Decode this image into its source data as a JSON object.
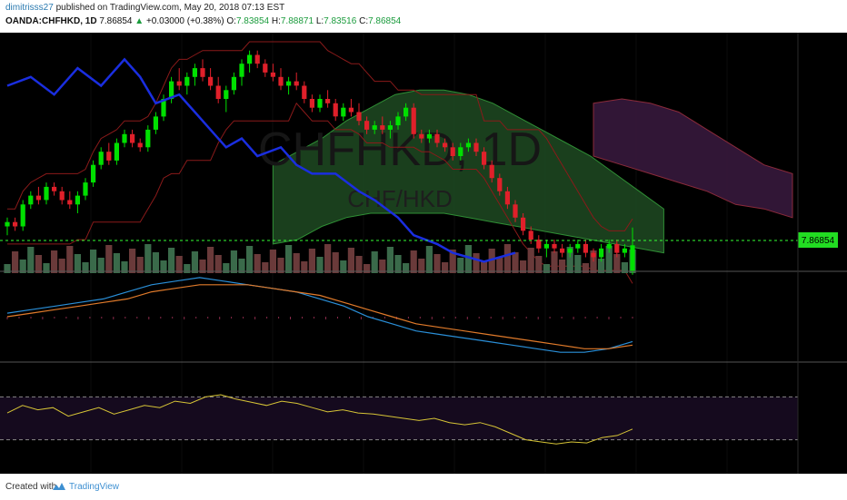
{
  "header": {
    "publisher": "dimitrisss27",
    "published_text": "published on TradingView.com, May 20, 2018 07:13 EST",
    "symbol": "OANDA:CHFHKD, 1D",
    "last": "7.86854",
    "change_arrow": "▲",
    "change": "+0.03000 (+0.38%)",
    "o_label": "O:",
    "o_value": "7.83854",
    "h_label": "H:",
    "h_value": "7.88871",
    "l_label": "L:",
    "l_value": "7.83516",
    "c_label": "C:",
    "c_value": "7.86854"
  },
  "watermark": {
    "symbol_tf": "CHFHKD, 1D",
    "pair": "CHF/HKD"
  },
  "price_label": "7.86854",
  "footer": {
    "created_with": "Created with",
    "brand": "TradingView",
    "logo_icon": "tradingview-logo-icon"
  },
  "colors": {
    "background": "#000000",
    "up_candle": "#00e000",
    "down_candle": "#e0202a",
    "blue_line": "#1a2ee0",
    "cloud_green": "#1f4a22",
    "cloud_purple": "#3a1a40",
    "rsi_band": "#150a1e",
    "rsi_line": "#d6c436",
    "macd_line": "#2a8fd8",
    "signal_line": "#e07a2a",
    "price_line": "#33ff33"
  },
  "chart_data": [
    {
      "type": "candlestick",
      "panel": "price",
      "symbol": "OANDA:CHFHKD",
      "timeframe": "1D",
      "last_price": 7.86854,
      "price_range": [
        7.84,
        8.1
      ],
      "candles": [
        [
          7.89,
          7.9,
          7.88,
          7.895
        ],
        [
          7.895,
          7.9,
          7.885,
          7.89
        ],
        [
          7.89,
          7.92,
          7.885,
          7.915
        ],
        [
          7.915,
          7.93,
          7.91,
          7.925
        ],
        [
          7.925,
          7.935,
          7.915,
          7.92
        ],
        [
          7.92,
          7.94,
          7.915,
          7.935
        ],
        [
          7.935,
          7.94,
          7.925,
          7.93
        ],
        [
          7.93,
          7.935,
          7.915,
          7.92
        ],
        [
          7.92,
          7.93,
          7.91,
          7.915
        ],
        [
          7.915,
          7.93,
          7.905,
          7.925
        ],
        [
          7.925,
          7.945,
          7.92,
          7.94
        ],
        [
          7.94,
          7.965,
          7.935,
          7.96
        ],
        [
          7.96,
          7.98,
          7.955,
          7.975
        ],
        [
          7.975,
          7.985,
          7.96,
          7.965
        ],
        [
          7.965,
          7.99,
          7.96,
          7.985
        ],
        [
          7.985,
          8.0,
          7.98,
          7.995
        ],
        [
          7.995,
          8.0,
          7.98,
          7.985
        ],
        [
          7.985,
          7.99,
          7.975,
          7.98
        ],
        [
          7.98,
          8.005,
          7.975,
          8.0
        ],
        [
          8.0,
          8.02,
          7.995,
          8.015
        ],
        [
          8.015,
          8.04,
          8.01,
          8.035
        ],
        [
          8.035,
          8.06,
          8.03,
          8.055
        ],
        [
          8.055,
          8.07,
          8.045,
          8.05
        ],
        [
          8.05,
          8.065,
          8.04,
          8.06
        ],
        [
          8.06,
          8.075,
          8.05,
          8.07
        ],
        [
          8.07,
          8.08,
          8.055,
          8.06
        ],
        [
          8.06,
          8.07,
          8.045,
          8.05
        ],
        [
          8.05,
          8.06,
          8.03,
          8.035
        ],
        [
          8.035,
          8.05,
          8.02,
          8.045
        ],
        [
          8.045,
          8.065,
          8.04,
          8.06
        ],
        [
          8.06,
          8.08,
          8.05,
          8.075
        ],
        [
          8.075,
          8.09,
          8.065,
          8.085
        ],
        [
          8.085,
          8.09,
          8.07,
          8.075
        ],
        [
          8.075,
          8.08,
          8.06,
          8.065
        ],
        [
          8.065,
          8.075,
          8.055,
          8.06
        ],
        [
          8.06,
          8.07,
          8.045,
          8.05
        ],
        [
          8.05,
          8.06,
          8.04,
          8.055
        ],
        [
          8.055,
          8.065,
          8.045,
          8.05
        ],
        [
          8.05,
          8.055,
          8.03,
          8.035
        ],
        [
          8.035,
          8.04,
          8.02,
          8.025
        ],
        [
          8.025,
          8.04,
          8.02,
          8.035
        ],
        [
          8.035,
          8.045,
          8.025,
          8.03
        ],
        [
          8.03,
          8.035,
          8.01,
          8.015
        ],
        [
          8.015,
          8.03,
          8.01,
          8.025
        ],
        [
          8.025,
          8.035,
          8.015,
          8.02
        ],
        [
          8.02,
          8.03,
          8.005,
          8.01
        ],
        [
          8.01,
          8.015,
          7.995,
          8.0
        ],
        [
          8.0,
          8.01,
          7.995,
          8.005
        ],
        [
          8.005,
          8.015,
          7.995,
          8.0
        ],
        [
          8.0,
          8.01,
          7.99,
          8.005
        ],
        [
          8.005,
          8.02,
          8.0,
          8.015
        ],
        [
          8.015,
          8.03,
          8.01,
          8.025
        ],
        [
          8.025,
          8.03,
          7.99,
          7.995
        ],
        [
          7.995,
          8.0,
          7.985,
          7.99
        ],
        [
          7.99,
          8.0,
          7.985,
          7.995
        ],
        [
          7.995,
          8.0,
          7.98,
          7.985
        ],
        [
          7.985,
          7.99,
          7.975,
          7.98
        ],
        [
          7.98,
          7.985,
          7.965,
          7.97
        ],
        [
          7.97,
          7.985,
          7.965,
          7.98
        ],
        [
          7.98,
          7.99,
          7.975,
          7.985
        ],
        [
          7.985,
          7.99,
          7.97,
          7.975
        ],
        [
          7.975,
          7.98,
          7.955,
          7.96
        ],
        [
          7.96,
          7.965,
          7.94,
          7.945
        ],
        [
          7.945,
          7.95,
          7.925,
          7.93
        ],
        [
          7.93,
          7.935,
          7.91,
          7.915
        ],
        [
          7.915,
          7.92,
          7.895,
          7.9
        ],
        [
          7.9,
          7.905,
          7.88,
          7.885
        ],
        [
          7.885,
          7.89,
          7.87,
          7.875
        ],
        [
          7.875,
          7.88,
          7.86,
          7.865
        ],
        [
          7.865,
          7.875,
          7.855,
          7.87
        ],
        [
          7.87,
          7.875,
          7.86,
          7.865
        ],
        [
          7.865,
          7.87,
          7.855,
          7.86
        ],
        [
          7.86,
          7.87,
          7.855,
          7.865
        ],
        [
          7.865,
          7.875,
          7.86,
          7.87
        ],
        [
          7.87,
          7.875,
          7.855,
          7.86
        ],
        [
          7.86,
          7.865,
          7.85,
          7.855
        ],
        [
          7.855,
          7.87,
          7.85,
          7.865
        ],
        [
          7.865,
          7.875,
          7.86,
          7.87
        ],
        [
          7.87,
          7.875,
          7.855,
          7.86
        ],
        [
          7.86,
          7.87,
          7.855,
          7.865
        ],
        [
          7.83854,
          7.88871,
          7.83516,
          7.86854
        ]
      ],
      "blue_line": [
        [
          0,
          8.05
        ],
        [
          3,
          8.06
        ],
        [
          6,
          8.04
        ],
        [
          9,
          8.07
        ],
        [
          12,
          8.05
        ],
        [
          15,
          8.08
        ],
        [
          17,
          8.06
        ],
        [
          19,
          8.03
        ],
        [
          22,
          8.04
        ],
        [
          24,
          8.02
        ],
        [
          26,
          8.0
        ],
        [
          28,
          7.98
        ],
        [
          30,
          7.99
        ],
        [
          32,
          7.97
        ],
        [
          35,
          7.98
        ],
        [
          37,
          7.96
        ],
        [
          39,
          7.95
        ],
        [
          42,
          7.95
        ],
        [
          45,
          7.93
        ],
        [
          47,
          7.92
        ],
        [
          50,
          7.9
        ],
        [
          52,
          7.88
        ],
        [
          55,
          7.87
        ],
        [
          57,
          7.86
        ],
        [
          59,
          7.855
        ],
        [
          61,
          7.85
        ],
        [
          63,
          7.855
        ],
        [
          65,
          7.86
        ]
      ],
      "cloud_spans": [
        {
          "color": "green",
          "x": [
            34,
            84
          ],
          "top": [
            7.96,
            7.975,
            7.99,
            8.01,
            8.025,
            8.04,
            8.045,
            8.045,
            8.04,
            8.03,
            8.015,
            8.0,
            7.985,
            7.97,
            7.95,
            7.93,
            7.91
          ],
          "bottom": [
            7.87,
            7.875,
            7.89,
            7.9,
            7.905,
            7.905,
            7.905,
            7.905,
            7.9,
            7.895,
            7.89,
            7.885,
            7.88,
            7.875,
            7.87,
            7.865,
            7.86
          ]
        },
        {
          "color": "purple",
          "x": [
            75,
            110
          ],
          "top": [
            8.03,
            8.035,
            8.03,
            8.02,
            8.0,
            7.98,
            7.96,
            7.95
          ],
          "bottom": [
            7.97,
            7.96,
            7.95,
            7.94,
            7.93,
            7.915,
            7.91,
            7.9
          ]
        }
      ]
    },
    {
      "type": "line",
      "panel": "macd",
      "series": [
        {
          "values": [
            0.01,
            0.02,
            0.03,
            0.04,
            0.05,
            0.07,
            0.09,
            0.1,
            0.11,
            0.1,
            0.09,
            0.08,
            0.07,
            0.05,
            0.03,
            0.0,
            -0.02,
            -0.04,
            -0.05,
            -0.06,
            -0.07,
            -0.08,
            -0.09,
            -0.1,
            -0.1,
            -0.09,
            -0.07
          ]
        },
        {
          "values": [
            0.0,
            0.01,
            0.02,
            0.03,
            0.04,
            0.05,
            0.07,
            0.08,
            0.09,
            0.09,
            0.09,
            0.08,
            0.07,
            0.06,
            0.04,
            0.02,
            0.0,
            -0.02,
            -0.03,
            -0.04,
            -0.05,
            -0.06,
            -0.07,
            -0.08,
            -0.09,
            -0.09,
            -0.08
          ]
        }
      ]
    },
    {
      "type": "line",
      "panel": "rsi",
      "band": [
        30,
        70
      ],
      "values": [
        55,
        62,
        58,
        60,
        52,
        56,
        60,
        54,
        58,
        62,
        60,
        66,
        64,
        70,
        72,
        68,
        65,
        62,
        66,
        64,
        60,
        56,
        58,
        55,
        54,
        52,
        50,
        48,
        50,
        46,
        44,
        46,
        42,
        36,
        30,
        28,
        26,
        28,
        27,
        32,
        34,
        40
      ]
    }
  ]
}
